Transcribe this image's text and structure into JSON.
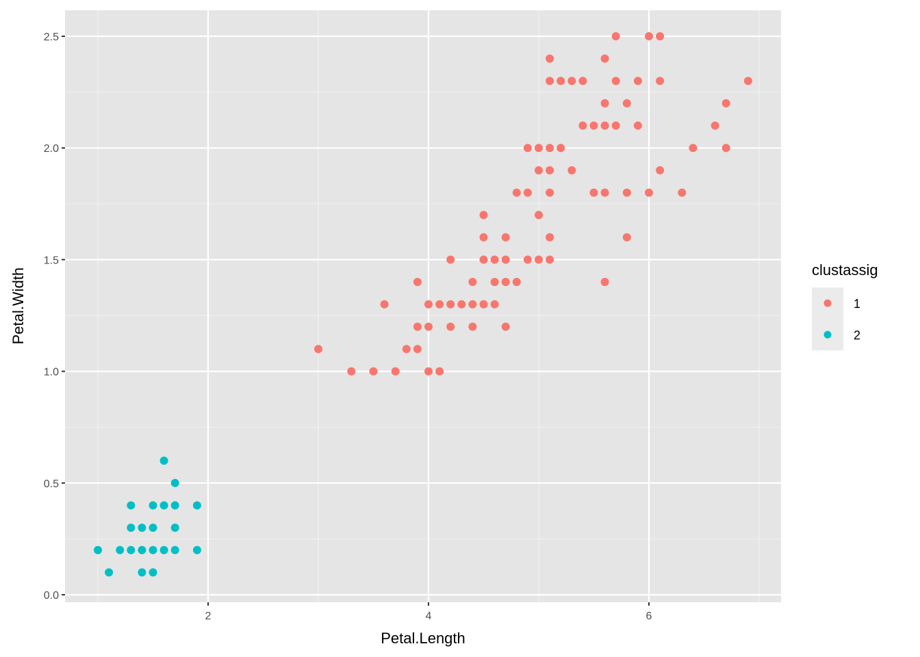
{
  "chart_data": {
    "type": "scatter",
    "title": "",
    "xlabel": "Petal.Length",
    "ylabel": "Petal.Width",
    "xlim": [
      0.705,
      7.195
    ],
    "ylim": [
      -0.02,
      2.62
    ],
    "x_ticks": [
      2,
      4,
      6
    ],
    "x_tick_labels": [
      "2",
      "4",
      "6"
    ],
    "y_ticks": [
      0.0,
      0.5,
      1.0,
      1.5,
      2.0,
      2.5
    ],
    "y_tick_labels": [
      "0.0",
      "0.5",
      "1.0",
      "1.5",
      "2.0",
      "2.5"
    ],
    "grid": true,
    "legend": {
      "title": "clustassig",
      "position": "right",
      "entries": [
        {
          "label": "1",
          "color": "#F8766D"
        },
        {
          "label": "2",
          "color": "#00BFC4"
        }
      ]
    },
    "series": [
      {
        "name": "1",
        "color": "#F8766D",
        "points": [
          [
            3.3,
            1.0
          ],
          [
            3.5,
            1.0
          ],
          [
            3.7,
            1.0
          ],
          [
            4.0,
            1.0
          ],
          [
            4.1,
            1.0
          ],
          [
            3.0,
            1.1
          ],
          [
            3.8,
            1.1
          ],
          [
            3.9,
            1.1
          ],
          [
            3.9,
            1.2
          ],
          [
            4.0,
            1.2
          ],
          [
            4.2,
            1.2
          ],
          [
            4.4,
            1.2
          ],
          [
            4.7,
            1.2
          ],
          [
            3.6,
            1.3
          ],
          [
            4.0,
            1.3
          ],
          [
            4.1,
            1.3
          ],
          [
            4.2,
            1.3
          ],
          [
            4.3,
            1.3
          ],
          [
            4.4,
            1.3
          ],
          [
            4.5,
            1.3
          ],
          [
            4.6,
            1.3
          ],
          [
            3.9,
            1.4
          ],
          [
            4.4,
            1.4
          ],
          [
            4.6,
            1.4
          ],
          [
            4.7,
            1.4
          ],
          [
            4.8,
            1.4
          ],
          [
            5.6,
            1.4
          ],
          [
            4.2,
            1.5
          ],
          [
            4.5,
            1.5
          ],
          [
            4.6,
            1.5
          ],
          [
            4.7,
            1.5
          ],
          [
            4.9,
            1.5
          ],
          [
            5.0,
            1.5
          ],
          [
            5.1,
            1.5
          ],
          [
            4.5,
            1.6
          ],
          [
            4.7,
            1.6
          ],
          [
            5.1,
            1.6
          ],
          [
            5.8,
            1.6
          ],
          [
            4.5,
            1.7
          ],
          [
            5.0,
            1.7
          ],
          [
            4.8,
            1.8
          ],
          [
            4.9,
            1.8
          ],
          [
            5.1,
            1.8
          ],
          [
            5.5,
            1.8
          ],
          [
            5.6,
            1.8
          ],
          [
            5.8,
            1.8
          ],
          [
            6.0,
            1.8
          ],
          [
            6.3,
            1.8
          ],
          [
            5.0,
            1.9
          ],
          [
            5.1,
            1.9
          ],
          [
            5.3,
            1.9
          ],
          [
            6.1,
            1.9
          ],
          [
            4.9,
            2.0
          ],
          [
            5.0,
            2.0
          ],
          [
            5.1,
            2.0
          ],
          [
            5.2,
            2.0
          ],
          [
            6.4,
            2.0
          ],
          [
            6.7,
            2.0
          ],
          [
            5.4,
            2.1
          ],
          [
            5.5,
            2.1
          ],
          [
            5.6,
            2.1
          ],
          [
            5.7,
            2.1
          ],
          [
            5.9,
            2.1
          ],
          [
            6.6,
            2.1
          ],
          [
            5.6,
            2.2
          ],
          [
            5.8,
            2.2
          ],
          [
            6.7,
            2.2
          ],
          [
            5.1,
            2.3
          ],
          [
            5.2,
            2.3
          ],
          [
            5.3,
            2.3
          ],
          [
            5.4,
            2.3
          ],
          [
            5.7,
            2.3
          ],
          [
            5.9,
            2.3
          ],
          [
            6.1,
            2.3
          ],
          [
            6.9,
            2.3
          ],
          [
            5.1,
            2.4
          ],
          [
            5.6,
            2.4
          ],
          [
            5.7,
            2.5
          ],
          [
            6.0,
            2.5
          ],
          [
            6.1,
            2.5
          ]
        ]
      },
      {
        "name": "2",
        "color": "#00BFC4",
        "points": [
          [
            1.1,
            0.1
          ],
          [
            1.4,
            0.1
          ],
          [
            1.5,
            0.1
          ],
          [
            1.0,
            0.2
          ],
          [
            1.2,
            0.2
          ],
          [
            1.3,
            0.2
          ],
          [
            1.4,
            0.2
          ],
          [
            1.5,
            0.2
          ],
          [
            1.6,
            0.2
          ],
          [
            1.7,
            0.2
          ],
          [
            1.9,
            0.2
          ],
          [
            1.3,
            0.3
          ],
          [
            1.4,
            0.3
          ],
          [
            1.5,
            0.3
          ],
          [
            1.7,
            0.3
          ],
          [
            1.3,
            0.4
          ],
          [
            1.5,
            0.4
          ],
          [
            1.6,
            0.4
          ],
          [
            1.7,
            0.4
          ],
          [
            1.9,
            0.4
          ],
          [
            1.7,
            0.5
          ],
          [
            1.6,
            0.6
          ]
        ]
      }
    ]
  },
  "style": {
    "panel_bg": "#E5E5E5",
    "grid_major": "#FFFFFF",
    "legend_key_bg": "#EBEBEB"
  }
}
